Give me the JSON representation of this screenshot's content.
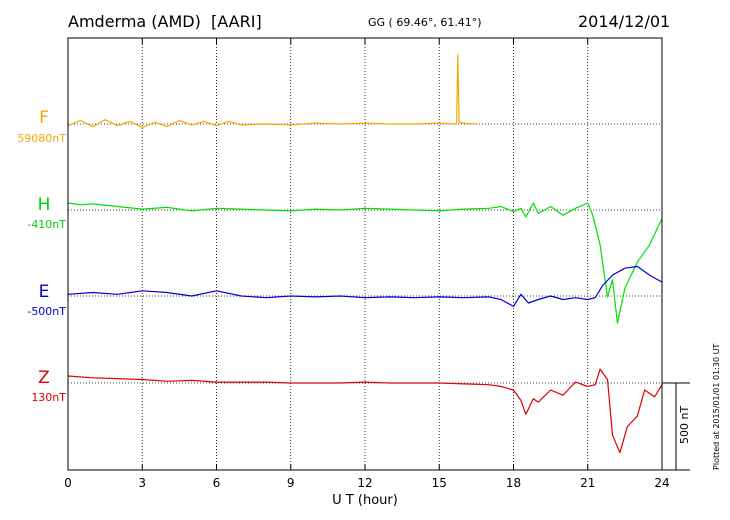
{
  "chart_data": {
    "type": "line",
    "station": "Amderma (AMD)",
    "network": "[AARI]",
    "coords": "GG ( 69.46°,  61.41°)",
    "date": "2014/12/01",
    "xlabel": "U T (hour)",
    "xlim": [
      0,
      24
    ],
    "xticks": [
      "0",
      "3",
      "6",
      "9",
      "12",
      "15",
      "18",
      "21",
      "24"
    ],
    "scale_label": "500 nT",
    "plotted_note": "Plotted at 2015/01/01 01:30 UT",
    "units_per_division": 500,
    "series": [
      {
        "name": "F",
        "baseline": "59080nT",
        "color": "#f5a800",
        "points": [
          [
            0,
            -10
          ],
          [
            0.5,
            20
          ],
          [
            1,
            -15
          ],
          [
            1.5,
            25
          ],
          [
            2,
            -10
          ],
          [
            2.5,
            15
          ],
          [
            3,
            -20
          ],
          [
            3.5,
            10
          ],
          [
            4,
            -15
          ],
          [
            4.5,
            20
          ],
          [
            5,
            -5
          ],
          [
            5.5,
            15
          ],
          [
            6,
            -10
          ],
          [
            6.5,
            15
          ],
          [
            7,
            -5
          ],
          [
            8,
            0
          ],
          [
            9,
            -5
          ],
          [
            10,
            5
          ],
          [
            11,
            0
          ],
          [
            12,
            5
          ],
          [
            13,
            0
          ],
          [
            14,
            0
          ],
          [
            15,
            5
          ],
          [
            15.7,
            0
          ],
          [
            15.75,
            400
          ],
          [
            15.8,
            10
          ],
          [
            16,
            5
          ],
          [
            16.5,
            0
          ]
        ]
      },
      {
        "name": "H",
        "baseline": "-410nT",
        "color": "#00e000",
        "points": [
          [
            0,
            40
          ],
          [
            0.5,
            30
          ],
          [
            1,
            35
          ],
          [
            2,
            20
          ],
          [
            3,
            5
          ],
          [
            4,
            15
          ],
          [
            5,
            -5
          ],
          [
            6,
            10
          ],
          [
            7,
            5
          ],
          [
            8,
            0
          ],
          [
            9,
            -5
          ],
          [
            10,
            5
          ],
          [
            11,
            0
          ],
          [
            12,
            10
          ],
          [
            13,
            5
          ],
          [
            14,
            0
          ],
          [
            15,
            -5
          ],
          [
            16,
            5
          ],
          [
            17,
            10
          ],
          [
            17.5,
            20
          ],
          [
            18,
            -10
          ],
          [
            18.3,
            10
          ],
          [
            18.5,
            -40
          ],
          [
            18.8,
            40
          ],
          [
            19,
            -20
          ],
          [
            19.5,
            20
          ],
          [
            20,
            -30
          ],
          [
            20.5,
            10
          ],
          [
            21,
            40
          ],
          [
            21.2,
            -30
          ],
          [
            21.5,
            -200
          ],
          [
            21.8,
            -500
          ],
          [
            22,
            -400
          ],
          [
            22.2,
            -650
          ],
          [
            22.5,
            -450
          ],
          [
            23,
            -300
          ],
          [
            23.5,
            -200
          ],
          [
            24,
            -50
          ]
        ]
      },
      {
        "name": "E",
        "baseline": "-500nT",
        "color": "#0000d0",
        "points": [
          [
            0,
            10
          ],
          [
            1,
            20
          ],
          [
            2,
            10
          ],
          [
            3,
            30
          ],
          [
            4,
            20
          ],
          [
            5,
            0
          ],
          [
            6,
            30
          ],
          [
            7,
            0
          ],
          [
            8,
            -10
          ],
          [
            9,
            0
          ],
          [
            10,
            -5
          ],
          [
            11,
            0
          ],
          [
            12,
            -10
          ],
          [
            13,
            -5
          ],
          [
            14,
            -10
          ],
          [
            15,
            -5
          ],
          [
            16,
            -10
          ],
          [
            17,
            -5
          ],
          [
            17.5,
            -20
          ],
          [
            18,
            -60
          ],
          [
            18.3,
            10
          ],
          [
            18.6,
            -40
          ],
          [
            19,
            -20
          ],
          [
            19.5,
            0
          ],
          [
            20,
            -20
          ],
          [
            20.5,
            -10
          ],
          [
            21,
            -20
          ],
          [
            21.3,
            -10
          ],
          [
            21.6,
            60
          ],
          [
            22,
            120
          ],
          [
            22.5,
            160
          ],
          [
            23,
            170
          ],
          [
            23.5,
            120
          ],
          [
            24,
            80
          ]
        ]
      },
      {
        "name": "Z",
        "baseline": "130nT",
        "color": "#e00000",
        "points": [
          [
            0,
            40
          ],
          [
            1,
            30
          ],
          [
            2,
            25
          ],
          [
            3,
            20
          ],
          [
            4,
            10
          ],
          [
            5,
            15
          ],
          [
            6,
            5
          ],
          [
            7,
            5
          ],
          [
            8,
            5
          ],
          [
            9,
            0
          ],
          [
            10,
            0
          ],
          [
            11,
            0
          ],
          [
            12,
            5
          ],
          [
            13,
            0
          ],
          [
            14,
            0
          ],
          [
            15,
            0
          ],
          [
            16,
            -5
          ],
          [
            17,
            -10
          ],
          [
            17.5,
            -20
          ],
          [
            18,
            -40
          ],
          [
            18.3,
            -100
          ],
          [
            18.5,
            -180
          ],
          [
            18.8,
            -90
          ],
          [
            19,
            -110
          ],
          [
            19.5,
            -40
          ],
          [
            20,
            -70
          ],
          [
            20.5,
            5
          ],
          [
            21,
            -20
          ],
          [
            21.3,
            -10
          ],
          [
            21.5,
            80
          ],
          [
            21.8,
            20
          ],
          [
            22,
            -300
          ],
          [
            22.3,
            -400
          ],
          [
            22.6,
            -250
          ],
          [
            23,
            -190
          ],
          [
            23.3,
            -40
          ],
          [
            23.7,
            -80
          ],
          [
            24,
            -10
          ]
        ]
      }
    ]
  }
}
